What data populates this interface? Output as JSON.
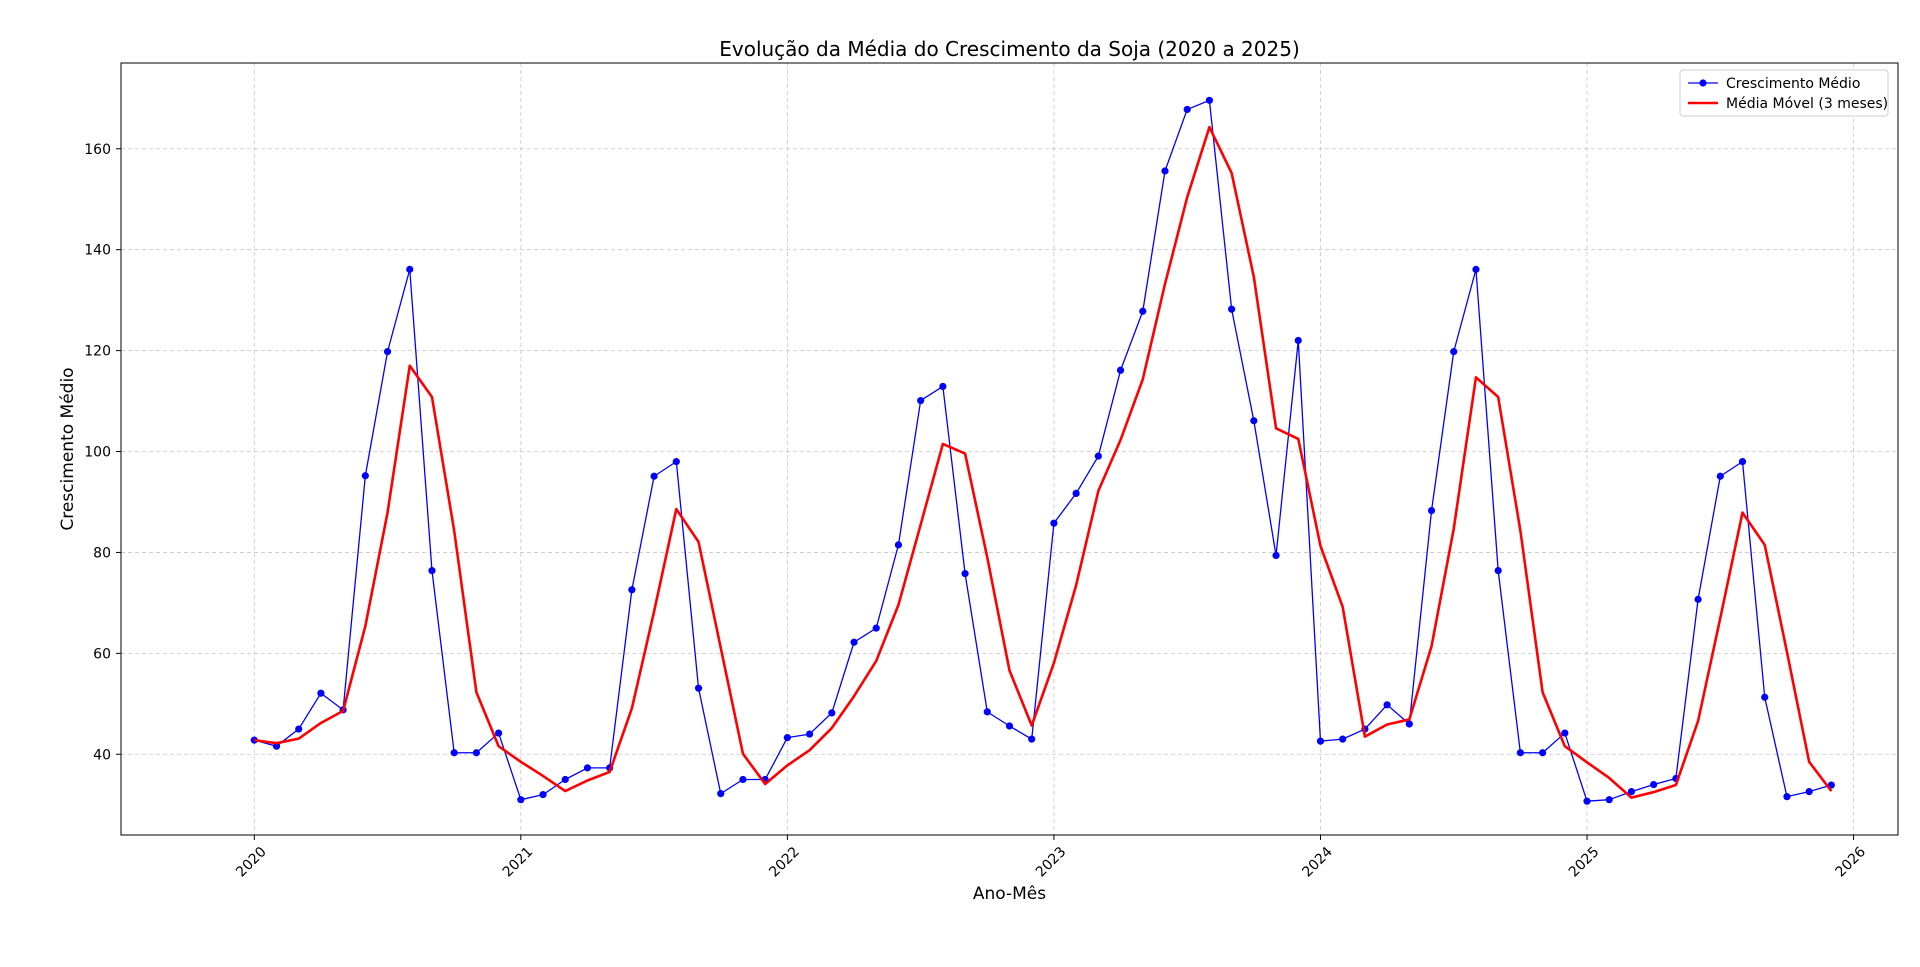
{
  "chart_data": {
    "type": "line",
    "title": "Evolução da Média do Crescimento da Soja (2020 a 2025)",
    "xlabel": "Ano-Mês",
    "ylabel": "Crescimento Médio",
    "x_tick_labels": [
      "2020",
      "2021",
      "2022",
      "2023",
      "2024",
      "2025",
      "2026"
    ],
    "y_tick_labels": [
      "40",
      "60",
      "80",
      "100",
      "120",
      "140",
      "160"
    ],
    "x_ticks": [
      "2020-01",
      "2021-01",
      "2022-01",
      "2023-01",
      "2024-01",
      "2025-01",
      "2026-01"
    ],
    "y_ticks": [
      40,
      60,
      80,
      100,
      120,
      140,
      160
    ],
    "xlim": [
      "2019-07",
      "2026-03"
    ],
    "ylim": [
      24,
      177
    ],
    "grid": true,
    "legend_position": "top-right",
    "colors": {
      "series1": "#0000ff",
      "series2": "#ff0000"
    },
    "x": [
      "2020-01",
      "2020-02",
      "2020-03",
      "2020-04",
      "2020-05",
      "2020-06",
      "2020-07",
      "2020-08",
      "2020-09",
      "2020-10",
      "2020-11",
      "2020-12",
      "2021-01",
      "2021-02",
      "2021-03",
      "2021-04",
      "2021-05",
      "2021-06",
      "2021-07",
      "2021-08",
      "2021-09",
      "2021-10",
      "2021-11",
      "2021-12",
      "2022-01",
      "2022-02",
      "2022-03",
      "2022-04",
      "2022-05",
      "2022-06",
      "2022-07",
      "2022-08",
      "2022-09",
      "2022-10",
      "2022-11",
      "2022-12",
      "2023-01",
      "2023-02",
      "2023-03",
      "2023-04",
      "2023-05",
      "2023-06",
      "2023-07",
      "2023-08",
      "2023-09",
      "2023-10",
      "2023-11",
      "2023-12",
      "2024-01",
      "2024-02",
      "2024-03",
      "2024-04",
      "2024-05",
      "2024-06",
      "2024-07",
      "2024-08",
      "2024-09",
      "2024-10",
      "2024-11",
      "2024-12",
      "2025-01",
      "2025-02",
      "2025-03",
      "2025-04",
      "2025-05",
      "2025-06",
      "2025-07",
      "2025-08",
      "2025-09",
      "2025-10",
      "2025-11",
      "2025-12"
    ],
    "series": [
      {
        "name": "Crescimento Médio",
        "values": [
          42.8,
          41.6,
          45.0,
          52.1,
          48.8,
          95.2,
          119.8,
          136.1,
          76.4,
          40.3,
          40.3,
          44.2,
          31.0,
          32.0,
          35.0,
          37.3,
          37.3,
          72.6,
          95.1,
          98.0,
          53.1,
          32.2,
          35.0,
          35.0,
          43.3,
          44.0,
          48.2,
          62.2,
          65.0,
          81.5,
          110.1,
          112.9,
          75.8,
          48.4,
          45.6,
          43.0,
          85.8,
          91.7,
          99.1,
          116.1,
          127.8,
          155.6,
          167.8,
          169.6,
          128.2,
          106.1,
          79.4,
          122.0,
          42.6,
          43.0,
          45.0,
          49.8,
          46.0,
          88.3,
          119.8,
          136.1,
          76.4,
          40.3,
          40.3,
          44.2,
          30.7,
          31.0,
          32.6,
          34.0,
          35.2,
          70.7,
          95.1,
          98.0,
          51.3,
          31.6,
          32.6,
          33.9
        ]
      },
      {
        "name": "Média Móvel (3 meses)",
        "values": [
          42.8,
          42.2,
          43.1,
          46.2,
          48.6,
          65.4,
          87.9,
          117.0,
          110.8,
          84.3,
          52.3,
          41.6,
          38.5,
          35.7,
          32.7,
          34.8,
          36.5,
          49.1,
          68.3,
          88.6,
          82.1,
          61.1,
          40.1,
          34.1,
          37.8,
          40.8,
          45.2,
          51.5,
          58.5,
          69.6,
          85.5,
          101.5,
          99.6,
          79.0,
          56.6,
          45.7,
          58.1,
          73.5,
          92.2,
          102.3,
          114.3,
          133.2,
          150.4,
          164.3,
          155.2,
          134.6,
          104.6,
          102.5,
          81.3,
          69.2,
          43.5,
          45.9,
          46.9,
          61.4,
          84.7,
          114.7,
          110.8,
          84.3,
          52.3,
          41.6,
          38.4,
          35.3,
          31.4,
          32.5,
          33.9,
          46.6,
          67.0,
          87.9,
          81.5,
          60.3,
          38.5,
          32.7
        ]
      }
    ]
  }
}
